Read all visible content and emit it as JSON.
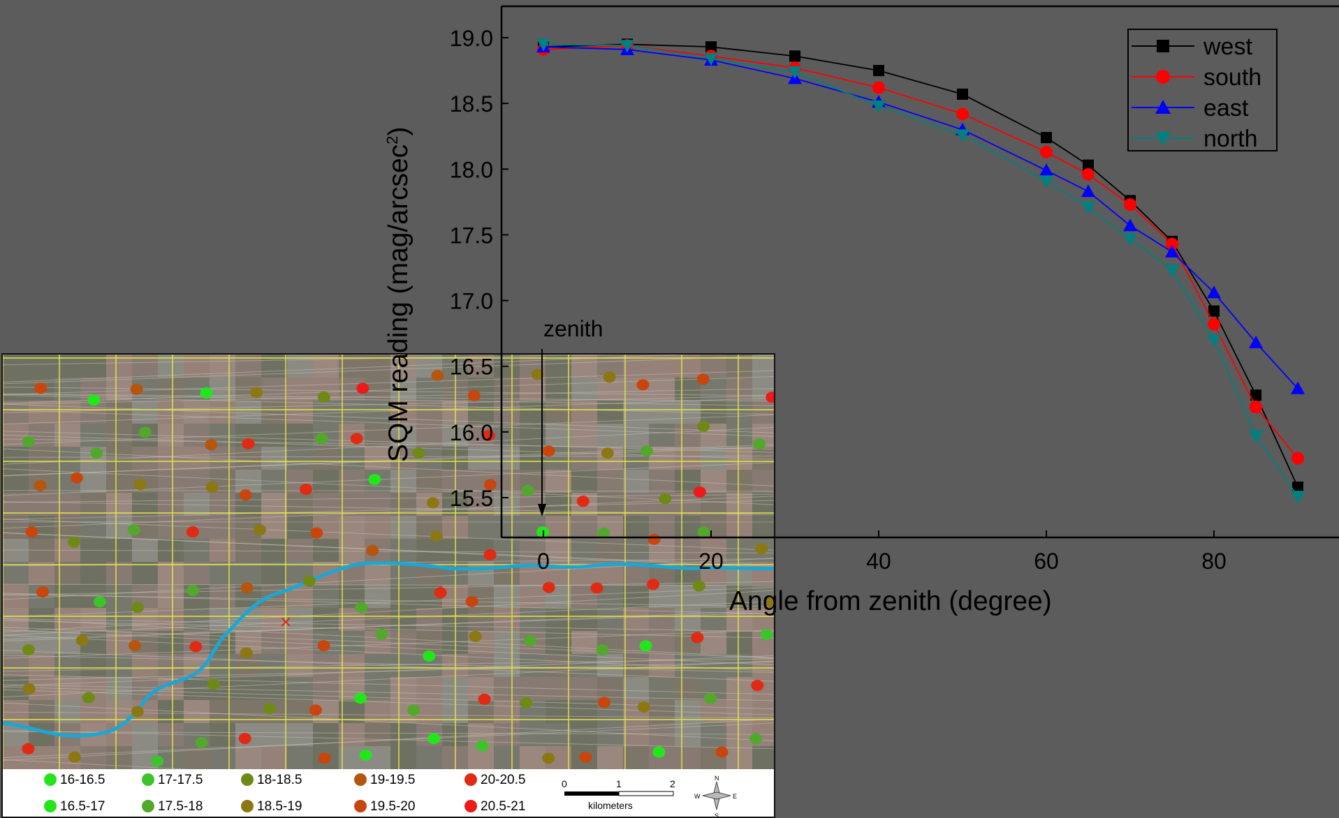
{
  "chart_data": {
    "type": "line",
    "title": "",
    "xlabel": "Angle from zenith (degree)",
    "ylabel": "SQM reading (mag/arcsec",
    "ylabel_sup": "2",
    "ylabel_close": ")",
    "xlim": [
      -5,
      95
    ],
    "ylim": [
      15.3,
      19.25
    ],
    "xticks": [
      0,
      20,
      40,
      60,
      80
    ],
    "yticks": [
      15.5,
      16.0,
      16.5,
      17.0,
      17.5,
      18.0,
      18.5,
      19.0
    ],
    "ytick_labels": [
      "15.5",
      "16.0",
      "16.5",
      "17.0",
      "17.5",
      "18.0",
      "18.5",
      "19.0"
    ],
    "annotation": "zenith",
    "x": [
      0,
      10,
      20,
      30,
      40,
      50,
      60,
      65,
      70,
      75,
      80,
      85,
      90
    ],
    "series": [
      {
        "name": "west",
        "color": "#000000",
        "marker": "square",
        "values": [
          18.93,
          18.95,
          18.93,
          18.86,
          18.75,
          18.57,
          18.24,
          18.03,
          17.76,
          17.45,
          16.92,
          16.28,
          15.58
        ]
      },
      {
        "name": "south",
        "color": "#ff0000",
        "marker": "circle",
        "values": [
          18.91,
          18.94,
          18.86,
          18.77,
          18.62,
          18.42,
          18.13,
          17.96,
          17.73,
          17.43,
          16.82,
          16.19,
          15.8
        ]
      },
      {
        "name": "east",
        "color": "#0000ff",
        "marker": "triangle-up",
        "values": [
          18.93,
          18.91,
          18.83,
          18.69,
          18.51,
          18.3,
          17.99,
          17.83,
          17.57,
          17.37,
          17.06,
          16.68,
          16.33
        ]
      },
      {
        "name": "north",
        "color": "#008080",
        "marker": "triangle-down",
        "values": [
          18.95,
          18.94,
          18.84,
          18.74,
          18.48,
          18.26,
          17.91,
          17.71,
          17.47,
          17.23,
          16.7,
          15.97,
          15.51
        ]
      }
    ],
    "legend_position": "top-right",
    "grid": false
  },
  "map": {
    "legend": [
      {
        "label": "16-16.5",
        "color": "#22e61a"
      },
      {
        "label": "16.5-17",
        "color": "#22e61a"
      },
      {
        "label": "17-17.5",
        "color": "#3dc42a"
      },
      {
        "label": "17.5-18",
        "color": "#52a82a"
      },
      {
        "label": "18-18.5",
        "color": "#6e8a14"
      },
      {
        "label": "18.5-19",
        "color": "#8b7812"
      },
      {
        "label": "19-19.5",
        "color": "#b5560e"
      },
      {
        "label": "19.5-20",
        "color": "#c8450e"
      },
      {
        "label": "20-20.5",
        "color": "#e02a14"
      },
      {
        "label": "20.5-21",
        "color": "#ee1a1a"
      }
    ],
    "scale": {
      "ticks": [
        "0",
        "1",
        "2"
      ],
      "unit": "kilometers"
    },
    "compass": {
      "n": "N",
      "s": "S",
      "e": "E",
      "w": "W"
    },
    "marker_symbol": "×"
  }
}
